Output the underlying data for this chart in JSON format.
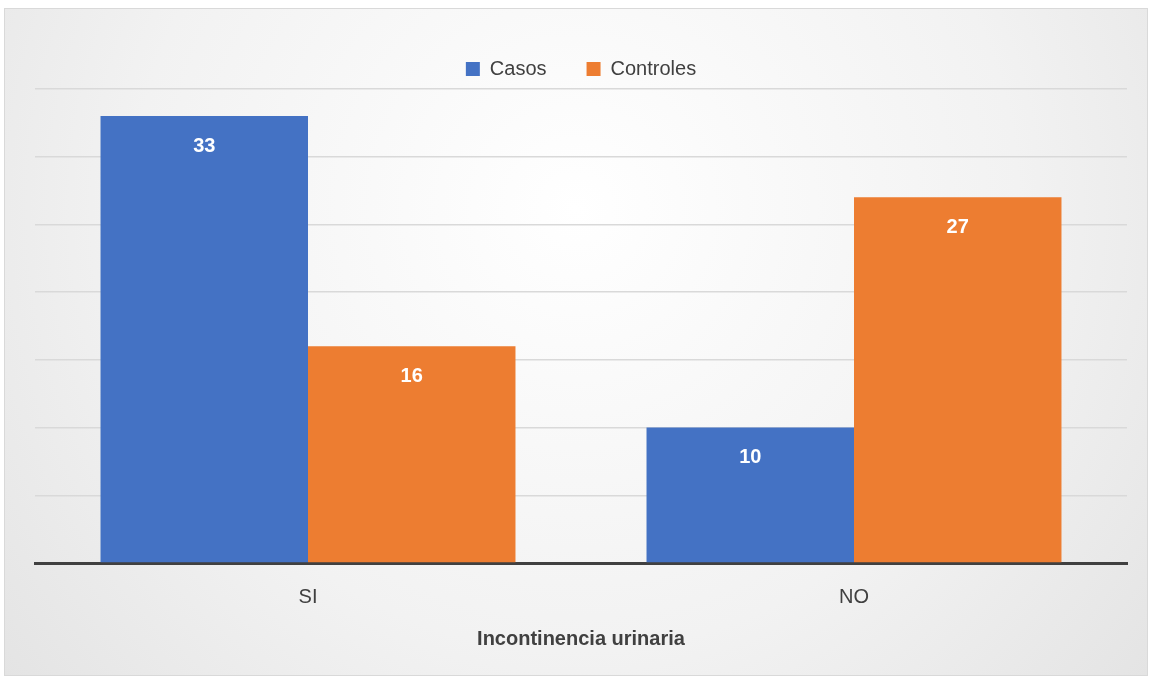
{
  "chart_data": {
    "type": "bar",
    "xlabel": "Incontinencia urinaria",
    "categories": [
      "SI",
      "NO"
    ],
    "series": [
      {
        "name": "Casos",
        "color": "#4472c4",
        "values": [
          33,
          10
        ]
      },
      {
        "name": "Controles",
        "color": "#ed7d31",
        "values": [
          16,
          27
        ]
      }
    ],
    "ylim": [
      0,
      35
    ],
    "yticks": [
      {
        "value": 0,
        "label": null
      },
      {
        "value": 5,
        "label": null
      },
      {
        "value": 10,
        "label": null
      },
      {
        "value": 15,
        "label": null
      },
      {
        "value": 20,
        "label": null
      },
      {
        "value": 25,
        "label": null
      },
      {
        "value": 30,
        "label": null
      },
      {
        "value": 35,
        "label": null
      }
    ],
    "tick_labels": "x",
    "grid": "y",
    "legend": "top",
    "data_labels": true
  }
}
